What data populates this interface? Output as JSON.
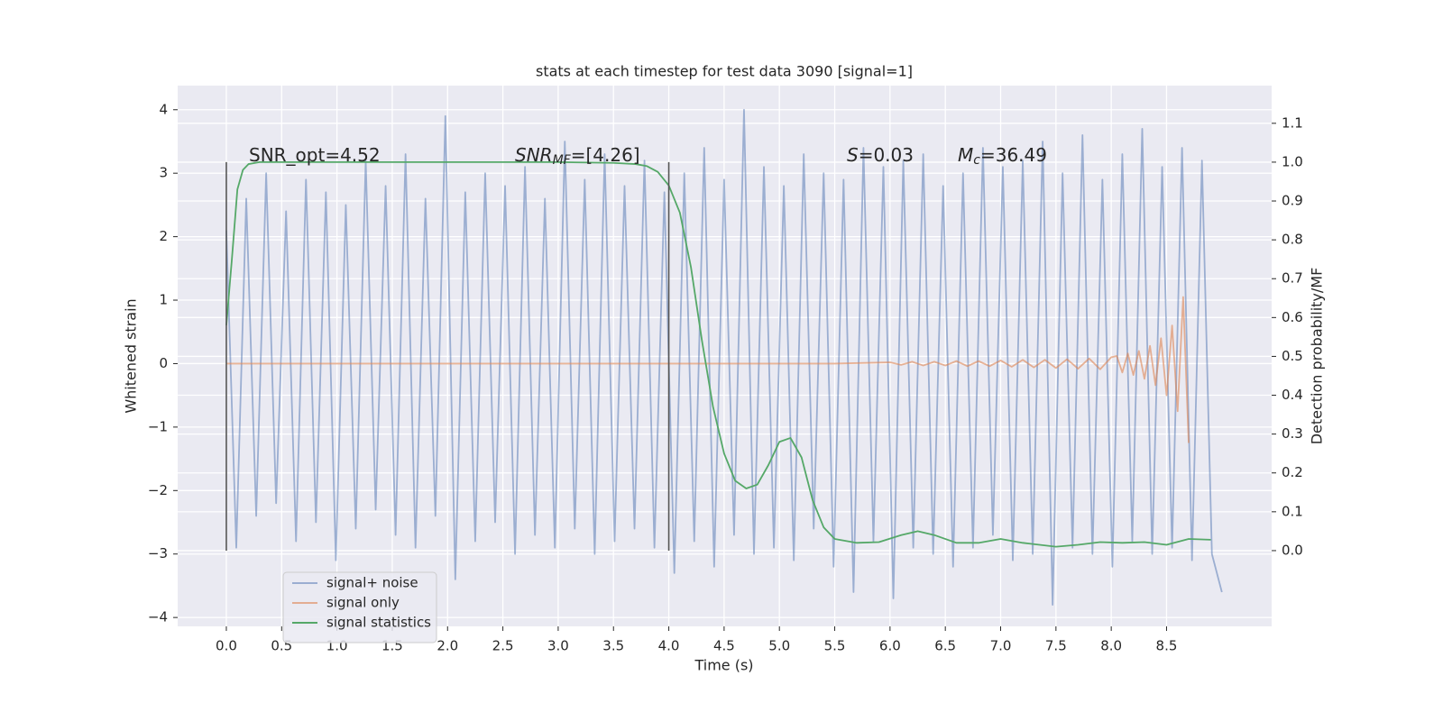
{
  "chart_data": {
    "type": "line",
    "title": "stats at each timestep for test data 3090 [signal=1]",
    "x_label": "Time (s)",
    "y_label": "Whitened strain",
    "y2_label": "Detection probability/MF",
    "xlim": [
      -0.44,
      9.45
    ],
    "ylim": [
      -4.14,
      4.38
    ],
    "y2lim": [
      -0.195,
      1.197
    ],
    "xticks": [
      {
        "value": 0,
        "label": "0.0"
      },
      0.5,
      {
        "value": 1,
        "label": "1.0"
      },
      1.5,
      {
        "value": 2,
        "label": "2.0"
      },
      2.5,
      {
        "value": 3,
        "label": "3.0"
      },
      3.5,
      {
        "value": 4,
        "label": "4.0"
      },
      4.5,
      {
        "value": 5,
        "label": "5.0"
      },
      5.5,
      {
        "value": 6,
        "label": "6.0"
      },
      6.5,
      {
        "value": 7,
        "label": "7.0"
      },
      7.5,
      {
        "value": 8,
        "label": "8.0"
      },
      8.5
    ],
    "yticks": [
      {
        "value": -4,
        "label": "−4"
      },
      {
        "value": -3,
        "label": "−3"
      },
      {
        "value": -2,
        "label": "−2"
      },
      {
        "value": -1,
        "label": "−1"
      },
      0,
      1,
      2,
      3,
      4
    ],
    "y2ticks": [
      {
        "value": 0,
        "label": "0.0"
      },
      0.1,
      0.2,
      0.3,
      0.4,
      0.5,
      0.6,
      0.7,
      0.8,
      0.9,
      {
        "value": 1,
        "label": "1.0"
      },
      1.1
    ],
    "grid": true,
    "legend": "lower left",
    "series": [
      {
        "name": "signal+ noise",
        "color": "#4c72b0",
        "alpha": 0.5,
        "x": [
          0,
          0.09,
          0.18,
          0.27,
          0.36,
          0.45,
          0.54,
          0.63,
          0.72,
          0.81,
          0.9,
          0.99,
          1.08,
          1.17,
          1.26,
          1.35,
          1.44,
          1.53,
          1.62,
          1.71,
          1.8,
          1.89,
          1.98,
          2.07,
          2.16,
          2.25,
          2.34,
          2.43,
          2.52,
          2.61,
          2.7,
          2.79,
          2.88,
          2.97,
          3.06,
          3.15,
          3.24,
          3.33,
          3.42,
          3.51,
          3.6,
          3.69,
          3.78,
          3.87,
          3.96,
          4.05,
          4.14,
          4.23,
          4.32,
          4.41,
          4.5,
          4.59,
          4.68,
          4.77,
          4.86,
          4.95,
          5.04,
          5.13,
          5.22,
          5.31,
          5.4,
          5.49,
          5.58,
          5.67,
          5.76,
          5.85,
          5.94,
          6.03,
          6.12,
          6.21,
          6.3,
          6.39,
          6.48,
          6.57,
          6.66,
          6.75,
          6.84,
          6.93,
          7.02,
          7.11,
          7.2,
          7.29,
          7.38,
          7.47,
          7.56,
          7.65,
          7.74,
          7.83,
          7.92,
          8.01,
          8.1,
          8.19,
          8.28,
          8.37,
          8.46,
          8.55,
          8.64,
          8.73,
          8.82,
          8.91,
          9.0
        ],
        "values": [
          2.1,
          -2.9,
          2.6,
          -2.4,
          3.0,
          -2.2,
          2.4,
          -2.8,
          2.9,
          -2.5,
          2.7,
          -3.1,
          2.5,
          -2.6,
          3.2,
          -2.3,
          2.8,
          -2.7,
          3.3,
          -2.9,
          2.6,
          -2.4,
          3.9,
          -3.4,
          2.7,
          -2.8,
          3.0,
          -2.5,
          2.8,
          -3.0,
          3.1,
          -2.7,
          2.6,
          -2.9,
          3.5,
          -2.6,
          2.9,
          -3.0,
          3.3,
          -2.8,
          2.8,
          -2.6,
          3.2,
          -2.9,
          2.7,
          -3.3,
          3.0,
          -2.8,
          3.4,
          -3.2,
          2.9,
          -2.7,
          4.0,
          -3.0,
          3.1,
          -2.9,
          2.8,
          -3.1,
          3.3,
          -2.6,
          3.0,
          -3.2,
          2.9,
          -3.6,
          3.4,
          -2.8,
          3.1,
          -3.7,
          3.2,
          -2.9,
          3.3,
          -3.0,
          2.8,
          -3.2,
          3.0,
          -2.9,
          3.4,
          -2.7,
          3.1,
          -3.1,
          3.2,
          -3.0,
          3.5,
          -3.8,
          3.0,
          -2.9,
          3.6,
          -3.0,
          2.9,
          -3.2,
          3.3,
          -2.8,
          3.7,
          -3.0,
          3.1,
          -2.9,
          3.4,
          -3.1,
          3.2,
          -3.0,
          -3.6
        ]
      },
      {
        "name": "signal only",
        "color": "#dd8452",
        "alpha": 0.6,
        "x": [
          0,
          5.5,
          6.0,
          6.1,
          6.2,
          6.3,
          6.4,
          6.5,
          6.6,
          6.7,
          6.8,
          6.9,
          7.0,
          7.1,
          7.2,
          7.3,
          7.4,
          7.5,
          7.6,
          7.7,
          7.8,
          7.9,
          8.0,
          8.05,
          8.1,
          8.15,
          8.2,
          8.25,
          8.3,
          8.35,
          8.4,
          8.45,
          8.5,
          8.55,
          8.6,
          8.65,
          8.7
        ],
        "values": [
          0,
          0,
          0.02,
          -0.02,
          0.03,
          -0.03,
          0.03,
          -0.03,
          0.04,
          -0.04,
          0.04,
          -0.04,
          0.05,
          -0.05,
          0.06,
          -0.06,
          0.06,
          -0.07,
          0.07,
          -0.08,
          0.08,
          -0.09,
          0.1,
          0.12,
          -0.14,
          0.16,
          -0.18,
          0.2,
          -0.24,
          0.28,
          -0.34,
          0.4,
          -0.5,
          0.6,
          -0.75,
          1.05,
          -1.25
        ]
      },
      {
        "name": "signal statistics",
        "color": "#55a868",
        "alpha": 1,
        "axis": "y2",
        "x": [
          0,
          0.05,
          0.1,
          0.15,
          0.2,
          0.3,
          1.0,
          2.0,
          3.0,
          3.5,
          3.7,
          3.8,
          3.9,
          4.0,
          4.1,
          4.2,
          4.3,
          4.4,
          4.5,
          4.6,
          4.7,
          4.8,
          4.9,
          5.0,
          5.1,
          5.2,
          5.3,
          5.4,
          5.5,
          5.7,
          5.9,
          6.1,
          6.25,
          6.4,
          6.6,
          6.8,
          7.0,
          7.2,
          7.5,
          7.7,
          7.9,
          8.1,
          8.3,
          8.5,
          8.7,
          8.9
        ],
        "values": [
          0.58,
          0.75,
          0.93,
          0.98,
          0.995,
          1.0,
          1.0,
          1.0,
          1.0,
          0.998,
          0.995,
          0.99,
          0.975,
          0.94,
          0.87,
          0.73,
          0.54,
          0.37,
          0.25,
          0.18,
          0.16,
          0.17,
          0.22,
          0.28,
          0.29,
          0.24,
          0.13,
          0.06,
          0.03,
          0.02,
          0.022,
          0.04,
          0.05,
          0.04,
          0.02,
          0.02,
          0.03,
          0.02,
          0.01,
          0.015,
          0.022,
          0.02,
          0.022,
          0.015,
          0.03,
          0.028
        ]
      }
    ],
    "vlines": {
      "x": [
        0,
        4
      ],
      "y2": [
        0,
        1
      ],
      "color": "#555555"
    },
    "annotations": [
      {
        "text": "SNR_opt=4.52"
      },
      {
        "math": "SNR",
        "sub": "MF",
        "text": "=[4.26]"
      },
      {
        "math": "S",
        "text": "=0.03"
      },
      {
        "math": "M",
        "sub": "c",
        "text": "=36.49"
      }
    ]
  }
}
